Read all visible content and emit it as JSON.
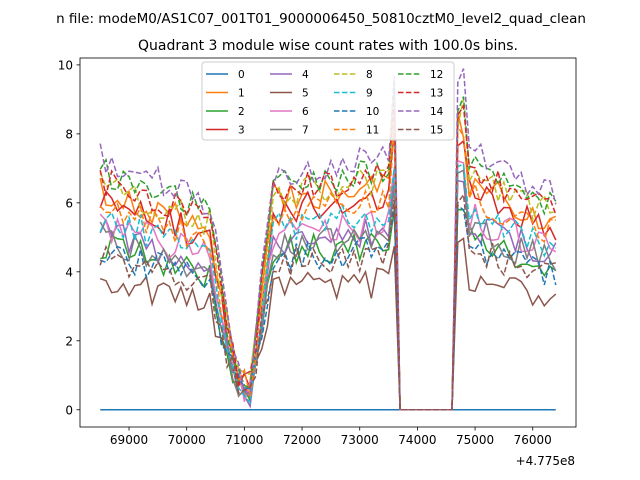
{
  "figure": {
    "suptitle": "n file: modeM0/AS1C07_001T01_9000006450_50810cztM0_level2_quad_clean"
  },
  "chart_data": {
    "type": "line",
    "title": "Quadrant 3 module wise count rates with 100.0s bins.",
    "xlabel": "",
    "ylabel": "",
    "x_offset_label": "+4.775e8",
    "xlim": [
      68150,
      76750
    ],
    "ylim": [
      -0.5,
      10.2
    ],
    "xticks": [
      69000,
      70000,
      71000,
      72000,
      73000,
      74000,
      75000,
      76000
    ],
    "yticks": [
      0,
      2,
      4,
      6,
      8,
      10
    ],
    "legend": {
      "placement": "upper-center",
      "columns": 4
    },
    "x_segments": [
      {
        "start": 68500,
        "end": 73700,
        "step": 100
      },
      {
        "start": 73800,
        "end": 74600,
        "step": 100
      },
      {
        "start": 74700,
        "end": 76400,
        "step": 100
      }
    ],
    "series": [
      {
        "name": "0",
        "color": "#1f77b4",
        "dash": false,
        "base": 0.0,
        "seed": 1
      },
      {
        "name": "1",
        "color": "#ff7f0e",
        "dash": false,
        "base": 6.4,
        "seed": 2
      },
      {
        "name": "2",
        "color": "#2ca02c",
        "dash": false,
        "base": 4.8,
        "seed": 3
      },
      {
        "name": "3",
        "color": "#d62728",
        "dash": false,
        "base": 6.1,
        "seed": 4
      },
      {
        "name": "4",
        "color": "#9467bd",
        "dash": false,
        "base": 5.2,
        "seed": 5
      },
      {
        "name": "5",
        "color": "#8c564b",
        "dash": false,
        "base": 3.7,
        "seed": 6
      },
      {
        "name": "6",
        "color": "#e377c2",
        "dash": false,
        "base": 5.4,
        "seed": 7
      },
      {
        "name": "7",
        "color": "#7f7f7f",
        "dash": false,
        "base": 5.0,
        "seed": 8
      },
      {
        "name": "8",
        "color": "#bcbd22",
        "dash": true,
        "base": 6.6,
        "seed": 9
      },
      {
        "name": "9",
        "color": "#17becf",
        "dash": true,
        "base": 5.6,
        "seed": 10
      },
      {
        "name": "10",
        "color": "#1f77b4",
        "dash": true,
        "base": 4.6,
        "seed": 11
      },
      {
        "name": "11",
        "color": "#ff7f0e",
        "dash": true,
        "base": 6.0,
        "seed": 12
      },
      {
        "name": "12",
        "color": "#2ca02c",
        "dash": true,
        "base": 6.9,
        "seed": 13
      },
      {
        "name": "13",
        "color": "#d62728",
        "dash": true,
        "base": 6.7,
        "seed": 14
      },
      {
        "name": "14",
        "color": "#9467bd",
        "dash": true,
        "base": 7.3,
        "seed": 15
      },
      {
        "name": "15",
        "color": "#8c564b",
        "dash": true,
        "base": 4.5,
        "seed": 16
      }
    ]
  }
}
